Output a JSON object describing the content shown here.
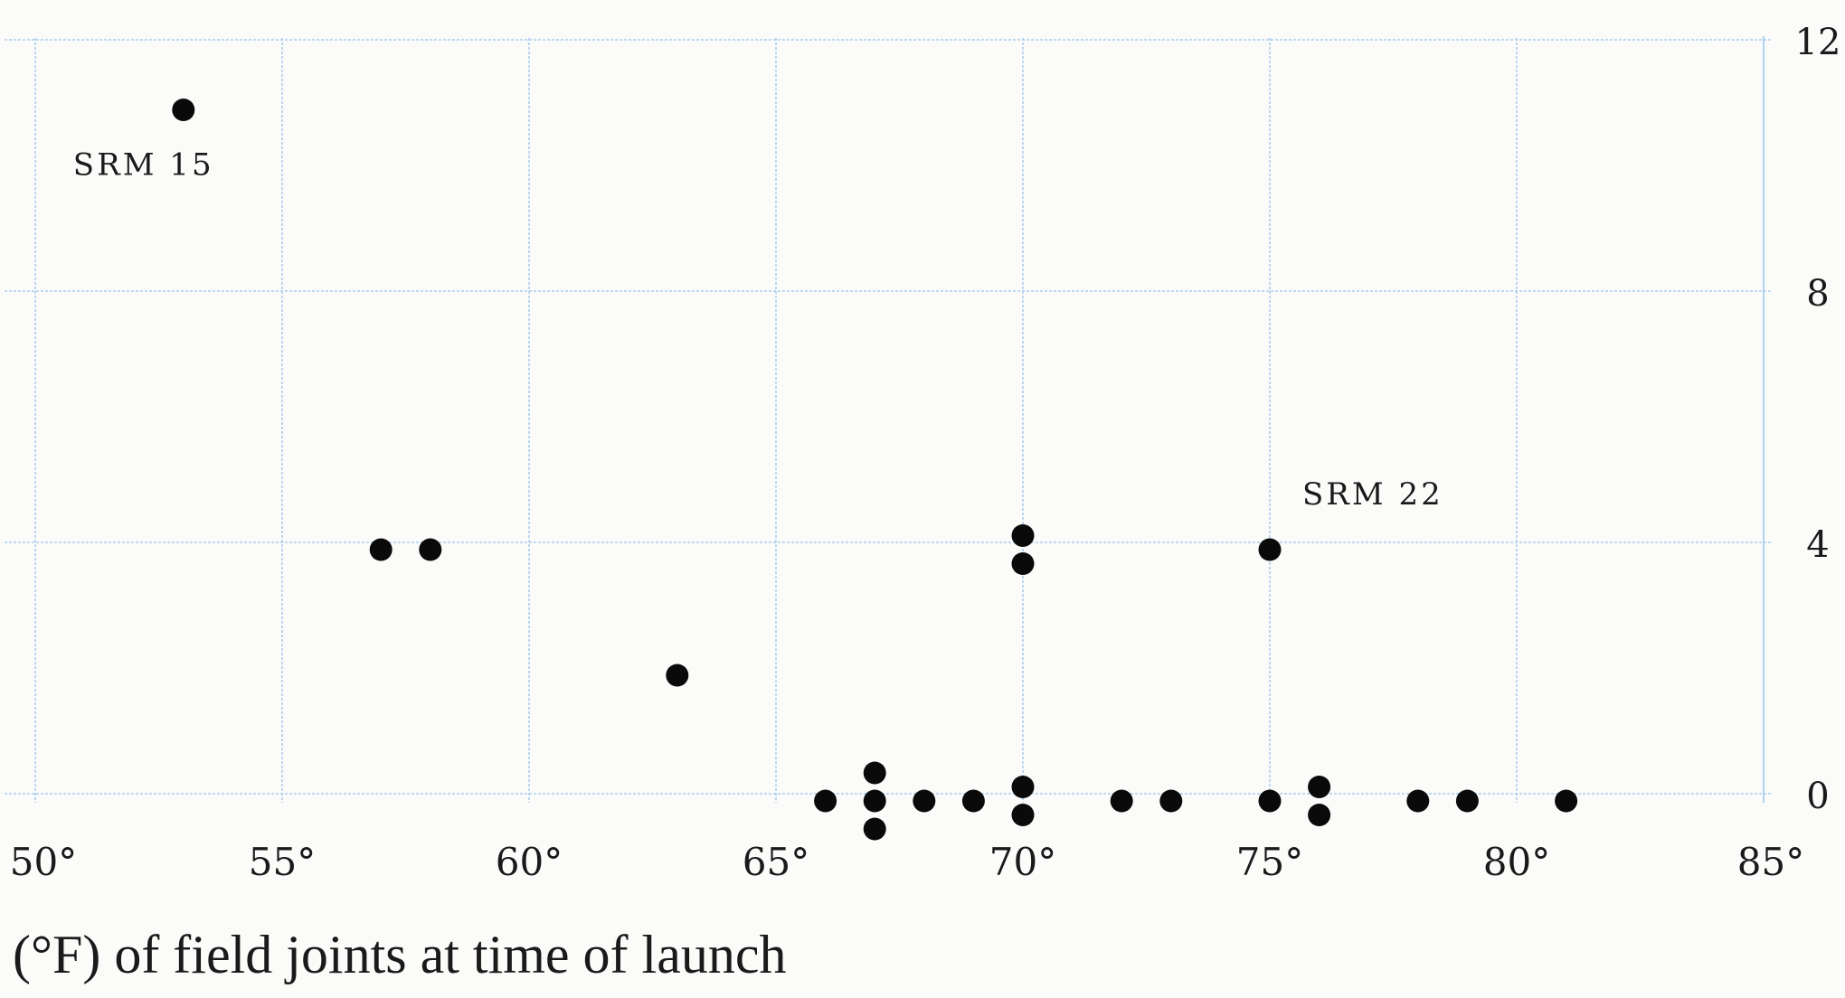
{
  "chart_data": {
    "type": "scatter",
    "xlabel": "(°F) of field joints at time of launch",
    "xlim": [
      50,
      85
    ],
    "ylim": [
      0,
      12
    ],
    "x_ticks": [
      50,
      55,
      60,
      65,
      70,
      75,
      80,
      85
    ],
    "x_tick_labels": [
      "50°",
      "55°",
      "60°",
      "65°",
      "70°",
      "75°",
      "80°",
      "85°"
    ],
    "y_ticks": [
      0,
      4,
      8,
      12
    ],
    "y_tick_labels": [
      "0",
      "4",
      "8",
      "12"
    ],
    "y_axis_side": "right",
    "grid": true,
    "points": [
      {
        "x": 53,
        "y": 11
      },
      {
        "x": 57,
        "y": 4
      },
      {
        "x": 58,
        "y": 4
      },
      {
        "x": 63,
        "y": 2
      },
      {
        "x": 66,
        "y": 0
      },
      {
        "x": 67,
        "y": 0
      },
      {
        "x": 67,
        "y": 0
      },
      {
        "x": 67,
        "y": 0
      },
      {
        "x": 68,
        "y": 0
      },
      {
        "x": 69,
        "y": 0
      },
      {
        "x": 70,
        "y": 4
      },
      {
        "x": 70,
        "y": 4
      },
      {
        "x": 70,
        "y": 0
      },
      {
        "x": 70,
        "y": 0
      },
      {
        "x": 72,
        "y": 0
      },
      {
        "x": 73,
        "y": 0
      },
      {
        "x": 75,
        "y": 4
      },
      {
        "x": 75,
        "y": 0
      },
      {
        "x": 76,
        "y": 0
      },
      {
        "x": 76,
        "y": 0
      },
      {
        "x": 78,
        "y": 0
      },
      {
        "x": 79,
        "y": 0
      },
      {
        "x": 81,
        "y": 0
      }
    ],
    "annotations": [
      {
        "text": "SRM 15",
        "x": 53,
        "y": 11
      },
      {
        "text": "SRM 22",
        "x": 75,
        "y": 4
      }
    ],
    "colors": {
      "point": "#0a0a0a",
      "grid": "#a9cdf0",
      "text": "#1a1a1a",
      "background": "#fbfbf9"
    }
  }
}
